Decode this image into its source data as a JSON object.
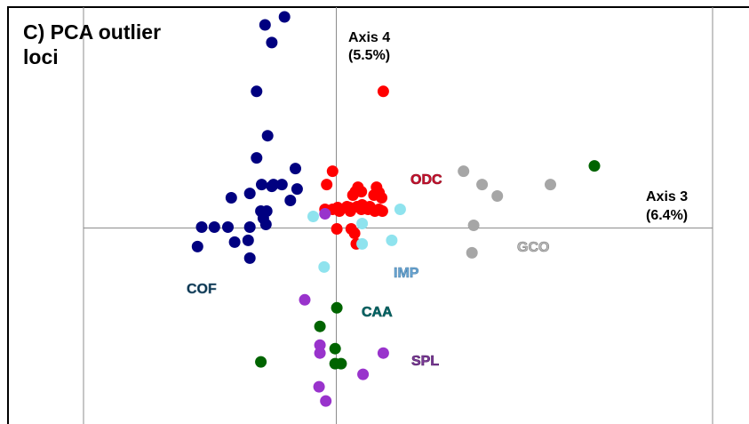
{
  "title_line1": "C) PCA outlier",
  "title_line2": "loci",
  "chart_data": {
    "type": "scatter",
    "title": "C) PCA outlier loci",
    "xlabel": "Axis 3 (6.4%)",
    "xlabel_parts": [
      "Axis 3",
      "(6.4%)"
    ],
    "ylabel": "Axis 4 (5.5%)",
    "ylabel_parts": [
      "Axis 4",
      "(5.5%)"
    ],
    "xlim": [
      -2.95,
      4.5
    ],
    "ylim": [
      -2.3,
      2.4
    ],
    "grid": false,
    "series": [
      {
        "name": "COF",
        "color": "#000080",
        "label_color": "#06304a",
        "points": [
          [
            -0.8,
            2.2
          ],
          [
            -0.57,
            2.29
          ],
          [
            -0.72,
            2.0
          ],
          [
            -0.9,
            1.45
          ],
          [
            -0.77,
            0.95
          ],
          [
            -0.9,
            0.7
          ],
          [
            -0.44,
            0.58
          ],
          [
            -0.72,
            0.38
          ],
          [
            -0.84,
            0.4
          ],
          [
            -0.7,
            0.4
          ],
          [
            -0.6,
            0.4
          ],
          [
            -0.42,
            0.35
          ],
          [
            -1.2,
            0.25
          ],
          [
            -0.98,
            0.3
          ],
          [
            -0.5,
            0.22
          ],
          [
            -0.85,
            0.1
          ],
          [
            -0.78,
            0.1
          ],
          [
            -0.82,
            0.02
          ],
          [
            -0.79,
            -0.05
          ],
          [
            -0.98,
            -0.08
          ],
          [
            -1.24,
            -0.08
          ],
          [
            -1.4,
            -0.08
          ],
          [
            -1.55,
            -0.08
          ],
          [
            -1.6,
            -0.3
          ],
          [
            -1.16,
            -0.25
          ],
          [
            -1.0,
            -0.23
          ],
          [
            -0.98,
            -0.43
          ]
        ]
      },
      {
        "name": "ODC",
        "color": "#ff0000",
        "label_color": "#c8102e",
        "points": [
          [
            0.6,
            1.45
          ],
          [
            0.0,
            0.55
          ],
          [
            -0.07,
            0.4
          ],
          [
            0.3,
            0.37
          ],
          [
            0.52,
            0.37
          ],
          [
            0.27,
            0.32
          ],
          [
            0.34,
            0.32
          ],
          [
            0.55,
            0.31
          ],
          [
            0.24,
            0.28
          ],
          [
            0.49,
            0.28
          ],
          [
            0.58,
            0.25
          ],
          [
            0.35,
            0.17
          ],
          [
            0.17,
            0.15
          ],
          [
            0.29,
            0.15
          ],
          [
            0.44,
            0.15
          ],
          [
            -0.09,
            0.12
          ],
          [
            0.06,
            0.14
          ],
          [
            0.2,
            0.14
          ],
          [
            0.34,
            0.12
          ],
          [
            0.42,
            0.12
          ],
          [
            0.55,
            0.12
          ],
          [
            0.0,
            0.12
          ],
          [
            0.21,
            0.1
          ],
          [
            0.08,
            0.1
          ],
          [
            0.5,
            0.1
          ],
          [
            0.59,
            0.1
          ],
          [
            0.05,
            -0.1
          ],
          [
            0.22,
            -0.1
          ],
          [
            0.26,
            -0.15
          ],
          [
            0.28,
            -0.27
          ]
        ]
      },
      {
        "name": "GCO",
        "color": "#a6a6a6",
        "label_color": "#bbbbbb",
        "points": [
          [
            1.55,
            0.55
          ],
          [
            1.77,
            0.4
          ],
          [
            1.95,
            0.27
          ],
          [
            2.58,
            0.4
          ],
          [
            1.67,
            -0.06
          ],
          [
            1.65,
            -0.37
          ]
        ]
      },
      {
        "name": "IMP",
        "color": "#8fe3ee",
        "label_color": "#6aa7d4",
        "points": [
          [
            0.8,
            0.12
          ],
          [
            -0.23,
            0.04
          ],
          [
            0.35,
            -0.04
          ],
          [
            0.7,
            -0.23
          ],
          [
            0.35,
            -0.27
          ],
          [
            -0.1,
            -0.53
          ]
        ]
      },
      {
        "name": "CAA",
        "color": "#006400",
        "label_color": "#006666",
        "points": [
          [
            3.1,
            0.61
          ],
          [
            0.05,
            -0.99
          ],
          [
            -0.15,
            -1.2
          ],
          [
            0.03,
            -1.45
          ],
          [
            0.03,
            -1.62
          ],
          [
            0.1,
            -1.62
          ],
          [
            -0.85,
            -1.6
          ]
        ]
      },
      {
        "name": "SPL",
        "color": "#9933cc",
        "label_color": "#7b3a98",
        "points": [
          [
            -0.09,
            0.07
          ],
          [
            -0.33,
            -0.9
          ],
          [
            -0.15,
            -1.41
          ],
          [
            -0.15,
            -1.5
          ],
          [
            0.6,
            -1.5
          ],
          [
            0.36,
            -1.74
          ],
          [
            -0.16,
            -1.88
          ],
          [
            -0.08,
            -2.04
          ]
        ]
      }
    ]
  }
}
